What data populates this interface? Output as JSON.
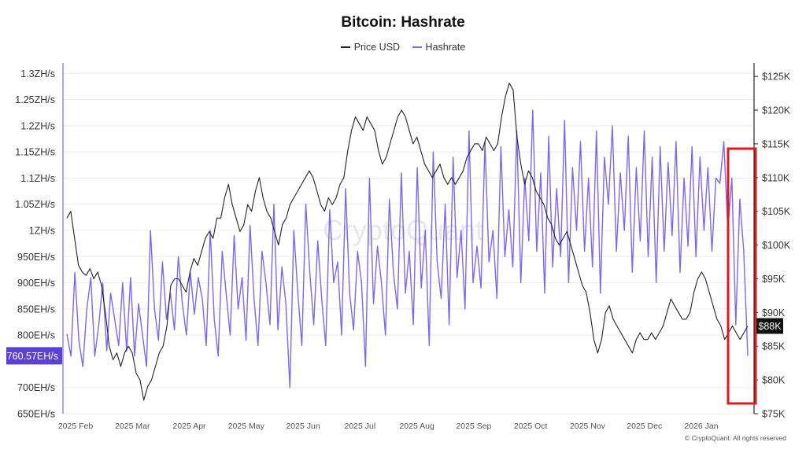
{
  "chart_data": {
    "type": "line",
    "title": "Bitcoin: Hashrate",
    "series": [
      {
        "name": "Price USD",
        "color": "#222222",
        "axis": "right",
        "values": [
          104,
          105,
          101,
          97,
          96,
          95.5,
          96.5,
          95,
          96,
          94,
          90,
          85,
          83,
          84,
          82,
          84,
          85,
          84,
          81,
          80,
          77,
          79,
          80,
          82,
          84,
          85,
          88,
          94,
          95,
          95,
          94,
          93,
          96,
          98,
          97,
          99,
          101,
          102,
          101,
          104,
          104,
          107,
          109,
          106,
          104,
          102,
          103,
          106,
          105,
          108,
          110,
          107,
          105,
          104,
          102,
          100,
          103,
          104,
          106,
          107,
          108,
          109,
          110,
          111,
          110,
          108,
          106,
          105,
          107,
          106,
          107,
          109,
          110,
          114,
          117,
          119,
          118,
          117,
          119,
          118,
          117,
          114,
          112,
          113,
          115,
          117,
          119,
          120,
          119,
          117,
          115,
          116,
          114,
          112,
          111,
          110,
          111,
          112,
          110,
          109,
          110,
          109,
          110,
          111,
          113,
          114,
          115,
          115,
          114,
          116,
          115,
          114,
          115,
          119,
          122,
          124,
          123,
          116,
          112,
          109,
          111,
          110,
          108,
          107,
          106,
          104,
          103,
          101,
          100,
          101,
          102,
          100,
          98,
          96,
          94,
          93,
          90,
          86,
          84,
          86,
          90,
          91,
          89,
          88,
          87,
          86,
          85,
          84,
          86,
          87,
          86,
          86,
          87,
          86,
          87,
          88,
          90,
          92,
          91,
          90,
          89,
          89,
          90,
          93,
          95,
          96,
          95,
          93,
          91,
          89,
          88,
          86,
          87,
          88,
          87,
          86,
          87,
          88
        ]
      },
      {
        "name": "Hashrate",
        "color": "#7b68ee",
        "axis": "left",
        "values": [
          802,
          760,
          920,
          790,
          740,
          850,
          910,
          760,
          820,
          900,
          770,
          880,
          830,
          780,
          900,
          770,
          910,
          760,
          860,
          800,
          740,
          1000,
          850,
          790,
          940,
          830,
          880,
          810,
          950,
          860,
          800,
          920,
          840,
          910,
          870,
          780,
          1000,
          830,
          760,
          960,
          880,
          800,
          990,
          850,
          910,
          790,
          1010,
          870,
          780,
          960,
          900,
          820,
          1050,
          810,
          930,
          860,
          700,
          1000,
          880,
          780,
          1050,
          920,
          820,
          980,
          870,
          780,
          1040,
          900,
          940,
          800,
          1080,
          880,
          810,
          960,
          900,
          740,
          1100,
          860,
          970,
          900,
          800,
          1060,
          920,
          850,
          1110,
          880,
          960,
          820,
          1120,
          890,
          1000,
          780,
          1150,
          940,
          870,
          1050,
          820,
          1140,
          910,
          1000,
          850,
          1190,
          900,
          970,
          890,
          1170,
          940,
          1000,
          870,
          1160,
          950,
          1040,
          930,
          1190,
          900,
          1100,
          980,
          1230,
          960,
          1110,
          880,
          1180,
          930,
          1080,
          950,
          1210,
          900,
          1120,
          1000,
          1170,
          960,
          1100,
          930,
          1190,
          880,
          1140,
          1050,
          1200,
          960,
          1110,
          1000,
          1180,
          920,
          1120,
          980,
          1190,
          950,
          1140,
          900,
          1160,
          960,
          1130,
          990,
          1170,
          920,
          1100,
          970,
          1160,
          950,
          1140,
          1000,
          1120,
          960,
          1100,
          1090,
          1170,
          1000,
          1100,
          820,
          1060,
          960,
          760.57
        ]
      }
    ],
    "x_ticks": [
      "2025 Feb",
      "2025 Mar",
      "2025 Apr",
      "2025 May",
      "2025 Jun",
      "2025 Jul",
      "2025 Aug",
      "2025 Sep",
      "2025 Oct",
      "2025 Nov",
      "2025 Dec",
      "2026 Jan"
    ],
    "y_left_ticks": [
      "1.3ZH/s",
      "1.25ZH/s",
      "1.2ZH/s",
      "1.15ZH/s",
      "1.1ZH/s",
      "1.05ZH/s",
      "1ZH/s",
      "950EH/s",
      "900EH/s",
      "850EH/s",
      "800EH/s",
      "760.57EH/s",
      "700EH/s",
      "650EH/s"
    ],
    "y_left_values": [
      1300,
      1250,
      1200,
      1150,
      1100,
      1050,
      1000,
      950,
      900,
      850,
      800,
      760.57,
      700,
      650
    ],
    "y_left_range": [
      650,
      1320
    ],
    "y_right_ticks": [
      "$125K",
      "$120K",
      "$115K",
      "$110K",
      "$105K",
      "$100K",
      "$95K",
      "$90K",
      "$88K",
      "$85K",
      "$80K",
      "$75K"
    ],
    "y_right_values": [
      125,
      120,
      115,
      110,
      105,
      100,
      95,
      90,
      88,
      85,
      80,
      75
    ],
    "y_right_range": [
      75,
      127
    ],
    "current_hashrate_label": "760.57EH/s",
    "current_price_label": "$88K",
    "highlight": "red box around the final weeks (late January 2026)",
    "legend_position": "top-center"
  },
  "watermark": "CryptoQuant",
  "credit": "© CryptoQuant. All rights reserved"
}
